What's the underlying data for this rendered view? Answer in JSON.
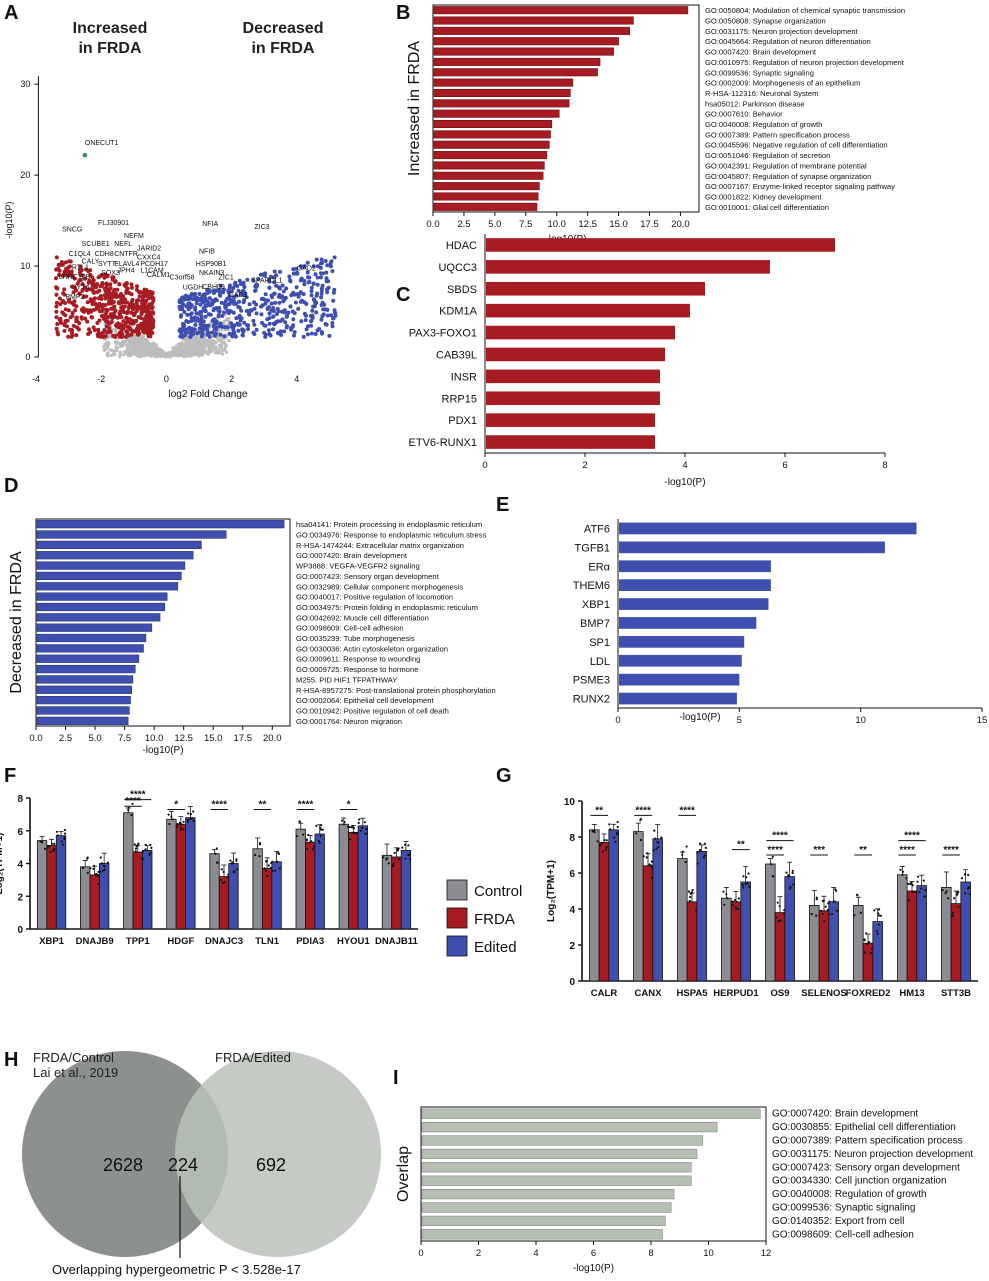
{
  "colors": {
    "red": "#a61c22",
    "blue": "#3f4fb0",
    "gray": "#8b8d92",
    "light_gray": "#bdbdbd",
    "venn_left": "#8d918e",
    "venn_right": "#b8c2b8",
    "overlap_bar": "#b5c0b3"
  },
  "chart_data": [
    {
      "id": "A",
      "panel": "A",
      "type": "scatter",
      "title_left": "Increased\nin FRDA",
      "title_right": "Decreased\nin FRDA",
      "xlabel": "log2 Fold Change",
      "ylabel": "-log10(P)",
      "xlim": [
        -4,
        6
      ],
      "ylim": [
        0,
        32
      ],
      "xticks": [
        -4,
        -2,
        0,
        2,
        4
      ],
      "yticks": [
        0,
        10,
        20,
        30
      ],
      "labels": [
        {
          "text": "ONECUT1",
          "x": -2.5,
          "y": 23.3
        },
        {
          "text": "SNCG",
          "x": -3.2,
          "y": 13.8
        },
        {
          "text": "FLJ30901",
          "x": -2.1,
          "y": 14.5
        },
        {
          "text": "NEFM",
          "x": -1.3,
          "y": 13.1
        },
        {
          "text": "SCUBE1",
          "x": -2.6,
          "y": 12.2
        },
        {
          "text": "NEFL",
          "x": -1.6,
          "y": 12.2
        },
        {
          "text": "JARID2",
          "x": -0.9,
          "y": 11.7
        },
        {
          "text": "C1QL4",
          "x": -3.0,
          "y": 11.1
        },
        {
          "text": "CDH8",
          "x": -2.2,
          "y": 11.1
        },
        {
          "text": "CNTFR",
          "x": -1.6,
          "y": 11.1
        },
        {
          "text": "CXXC4",
          "x": -0.9,
          "y": 10.7
        },
        {
          "text": "CALY",
          "x": -2.6,
          "y": 10.3
        },
        {
          "text": "SYT7",
          "x": -2.1,
          "y": 10.0
        },
        {
          "text": "ELAVL4",
          "x": -1.6,
          "y": 10.0
        },
        {
          "text": "PCDH17",
          "x": -0.8,
          "y": 10.0
        },
        {
          "text": "RTL1",
          "x": -2.9,
          "y": 9.6
        },
        {
          "text": "JPH4",
          "x": -1.5,
          "y": 9.3
        },
        {
          "text": "L1CAM",
          "x": -0.8,
          "y": 9.3
        },
        {
          "text": "SOX3",
          "x": -2.0,
          "y": 9.0
        },
        {
          "text": "CALM1",
          "x": -0.6,
          "y": 8.8
        },
        {
          "text": "LRRC10B",
          "x": -3.3,
          "y": 8.6
        },
        {
          "text": "NFIA",
          "x": 1.1,
          "y": 14.4
        },
        {
          "text": "ZIC3",
          "x": 2.7,
          "y": 14.1
        },
        {
          "text": "NFIB",
          "x": 1.0,
          "y": 11.4
        },
        {
          "text": "GAD2",
          "x": 4.0,
          "y": 9.5
        },
        {
          "text": "HSP90B1",
          "x": 0.9,
          "y": 10.0
        },
        {
          "text": "SPARCL1",
          "x": 2.6,
          "y": 8.2
        },
        {
          "text": "NKAIN3",
          "x": 1.0,
          "y": 9.0
        },
        {
          "text": "ZIC1",
          "x": 1.6,
          "y": 8.5
        },
        {
          "text": "C3orf58",
          "x": 0.1,
          "y": 8.5
        },
        {
          "text": "UGDH",
          "x": 0.5,
          "y": 7.4
        },
        {
          "text": "CBH09",
          "x": 1.1,
          "y": 7.5
        },
        {
          "text": "GAD1",
          "x": 1.9,
          "y": 6.6
        },
        {
          "text": "SYT4",
          "x": -2.9,
          "y": 7.4
        },
        {
          "text": "PMP2",
          "x": -3.1,
          "y": 6.4
        }
      ]
    },
    {
      "id": "B",
      "panel": "B",
      "type": "bar",
      "orientation": "horizontal",
      "ylabel": "Increased in FRDA",
      "xlabel": "-log10(P)",
      "xlim": [
        0,
        21.5
      ],
      "xticks": [
        0,
        2.5,
        5,
        7.5,
        10,
        12.5,
        15,
        17.5,
        20
      ],
      "xtick_labels": [
        "0.0",
        "2.5",
        "5.0",
        "7.5",
        "10.0",
        "12.5",
        "15.0",
        "17.5",
        "20.0"
      ],
      "categories": [
        "GO:0050804: Modulation of chemical synaptic transmission",
        "GO:0050808: Synapse organization",
        "GO:0031175: Neuron projection development",
        "GO:0045664: Regulation of neuron differentiation",
        "GO:0007420: Brain development",
        "GO:0010975: Regulation of neuron projection development",
        "GO:0099536: Synaptic signaling",
        "GO:0002009: Morphogenesis of an epithelium",
        "R-HSA-112316: Neuronal System",
        "hsa05012: Parkinson disease",
        "GO:0007610: Behavior",
        "GO:0040008: Regulation of growth",
        "GO:0007389: Pattern specification process",
        "GO:0045596: Negative regulation of cell differentiation",
        "GO:0051046: Regulation of secretion",
        "GO:0042391: Regulation of membrane potential",
        "GO:0045807: Regulation of synapse organization",
        "GO:0007167: Enzyme-linked receptor signaling pathway",
        "GO:0001822: Kidney development",
        "GO:0010001: Glial cell differentiation"
      ],
      "values": [
        20.6,
        16.2,
        15.9,
        15.0,
        14.6,
        13.5,
        13.3,
        11.3,
        11.1,
        11.0,
        10.2,
        9.6,
        9.5,
        9.4,
        9.2,
        9.0,
        8.9,
        8.6,
        8.5,
        8.4
      ]
    },
    {
      "id": "C",
      "panel": "C",
      "type": "bar",
      "orientation": "horizontal",
      "xlabel": "-log10(P)",
      "xlim": [
        0,
        8
      ],
      "xticks": [
        0,
        2,
        4,
        6,
        8
      ],
      "categories": [
        "HDAC",
        "UQCC3",
        "SBDS",
        "KDM1A",
        "PAX3-FOXO1",
        "CAB39L",
        "INSR",
        "RRP15",
        "PDX1",
        "ETV6-RUNX1"
      ],
      "values": [
        7.0,
        5.7,
        4.4,
        4.1,
        3.8,
        3.6,
        3.5,
        3.5,
        3.4,
        3.4
      ]
    },
    {
      "id": "D",
      "panel": "D",
      "type": "bar",
      "orientation": "horizontal",
      "ylabel": "Decreased in FRDA",
      "xlabel": "-log10(P)",
      "xlim": [
        0,
        21.5
      ],
      "xticks": [
        0,
        2.5,
        5,
        7.5,
        10,
        12.5,
        15,
        17.5,
        20
      ],
      "xtick_labels": [
        "0.0",
        "2.5",
        "5.0",
        "7.5",
        "10.0",
        "12.5",
        "15.0",
        "17.5",
        "20.0"
      ],
      "categories": [
        "hsa04141: Protein processing in endoplasmic reticulum",
        "GO:0034976: Response to endoplasmic reticulum stress",
        "R-HSA-1474244: Extracellular matrix organization",
        "GO:0007420: Brain development",
        "WP3888: VEGFA-VEGFR2 signaling",
        "GO:0007423: Sensory organ development",
        "GO:0032989: Cellular component morphogenesis",
        "GO:0040017: Positive regulation of locomotion",
        "GO:0034975: Protein folding in endoplasmic reticulum",
        "GO:0042692: Muscle cell differentiation",
        "GO:0098609: Cell-cell adhesion",
        "GO:0035239: Tube morphogenesis",
        "GO:0030036: Actin cytoskeleton organization",
        "GO:0009611: Response to wounding",
        "GO:0009725: Response to hormone",
        "M255: PID HIF1 TFPATHWAY",
        "R-HSA-8957275: Post-translational protein phosphorylation",
        "GO:0002064: Epithelial cell development",
        "GO:0010942: Positive regulation of cell death",
        "GO:0001764: Neuron migration"
      ],
      "values": [
        21.0,
        16.1,
        14.0,
        13.3,
        12.6,
        12.3,
        12.0,
        11.1,
        10.9,
        10.5,
        9.8,
        9.3,
        9.1,
        8.7,
        8.4,
        8.2,
        8.1,
        8.0,
        7.9,
        7.8
      ]
    },
    {
      "id": "E",
      "panel": "E",
      "type": "bar",
      "orientation": "horizontal",
      "xlabel": "-log10(P)",
      "xlim": [
        0,
        15
      ],
      "xticks": [
        0,
        5,
        10,
        15
      ],
      "categories": [
        "ATF6",
        "TGFB1",
        "ERα",
        "THEM6",
        "XBP1",
        "BMP7",
        "SP1",
        "LDL",
        "PSME3",
        "RUNX2"
      ],
      "values": [
        12.3,
        11.0,
        6.3,
        6.3,
        6.2,
        5.7,
        5.2,
        5.1,
        5.0,
        4.9
      ]
    },
    {
      "id": "F",
      "panel": "F",
      "type": "bar",
      "grouped": true,
      "ylabel": "Log₂(TPM+1)",
      "ylim": [
        0,
        8
      ],
      "yticks": [
        0,
        2,
        4,
        6,
        8
      ],
      "categories": [
        "XBP1",
        "DNAJB9",
        "TPP1",
        "HDGF",
        "DNAJC3",
        "TLN1",
        "PDIA3",
        "HYOU1",
        "DNAJB11"
      ],
      "series": [
        {
          "name": "Control",
          "values": [
            5.4,
            3.8,
            7.1,
            6.7,
            4.6,
            4.9,
            6.1,
            6.4,
            4.5
          ]
        },
        {
          "name": "FRDA",
          "values": [
            5.1,
            3.3,
            4.7,
            6.4,
            3.2,
            3.7,
            5.3,
            5.9,
            4.4
          ]
        },
        {
          "name": "Edited",
          "values": [
            5.7,
            4.0,
            4.8,
            6.8,
            4.0,
            4.1,
            5.8,
            6.3,
            4.8
          ]
        }
      ],
      "significance": [
        {
          "category": "TPP1",
          "label": "****",
          "from": "Control",
          "to": "Edited",
          "level": 7.9
        },
        {
          "category": "TPP1",
          "label": "****",
          "from": "Control",
          "to": "FRDA",
          "level": 7.5
        },
        {
          "category": "HDGF",
          "label": "*",
          "from": "Control",
          "to": "FRDA",
          "level": 7.3
        },
        {
          "category": "DNAJC3",
          "label": "****",
          "from": "Control",
          "to": "FRDA",
          "level": 7.3
        },
        {
          "category": "TLN1",
          "label": "**",
          "from": "Control",
          "to": "FRDA",
          "level": 7.3
        },
        {
          "category": "PDIA3",
          "label": "****",
          "from": "Control",
          "to": "FRDA",
          "level": 7.3
        },
        {
          "category": "HYOU1",
          "label": "*",
          "from": "Control",
          "to": "FRDA",
          "level": 7.3
        }
      ]
    },
    {
      "id": "G",
      "panel": "G",
      "type": "bar",
      "grouped": true,
      "ylabel": "Log₂(TPM+1)",
      "ylim": [
        0,
        10
      ],
      "yticks": [
        0,
        2,
        4,
        6,
        8,
        10
      ],
      "categories": [
        "CALR",
        "CANX",
        "HSPA5",
        "HERPUD1",
        "OS9",
        "SELENOS",
        "FOXRED2",
        "HM13",
        "STT3B"
      ],
      "series": [
        {
          "name": "Control",
          "values": [
            8.4,
            8.3,
            6.8,
            4.6,
            6.5,
            4.2,
            4.2,
            5.9,
            5.2
          ]
        },
        {
          "name": "FRDA",
          "values": [
            7.7,
            6.4,
            4.4,
            4.4,
            3.8,
            3.9,
            2.1,
            5.0,
            4.3
          ]
        },
        {
          "name": "Edited",
          "values": [
            8.4,
            7.9,
            7.2,
            5.5,
            5.8,
            4.4,
            3.3,
            5.3,
            5.5
          ]
        }
      ],
      "significance": [
        {
          "category": "CALR",
          "label": "**",
          "from": "Control",
          "to": "FRDA",
          "level": 9.2
        },
        {
          "category": "CANX",
          "label": "****",
          "from": "Control",
          "to": "FRDA",
          "level": 9.2
        },
        {
          "category": "HSPA5",
          "label": "****",
          "from": "Control",
          "to": "FRDA",
          "level": 9.2
        },
        {
          "category": "HERPUD1",
          "label": "**",
          "from": "FRDA",
          "to": "Edited",
          "level": 7.3
        },
        {
          "category": "OS9",
          "label": "****",
          "from": "Control",
          "to": "Edited",
          "level": 7.8
        },
        {
          "category": "OS9",
          "label": "****",
          "from": "Control",
          "to": "FRDA",
          "level": 7.0
        },
        {
          "category": "SELENOS",
          "label": "***",
          "from": "Control",
          "to": "FRDA",
          "level": 7.0
        },
        {
          "category": "FOXRED2",
          "label": "**",
          "from": "Control",
          "to": "FRDA",
          "level": 7.0
        },
        {
          "category": "HM13",
          "label": "****",
          "from": "Control",
          "to": "Edited",
          "level": 7.8
        },
        {
          "category": "HM13",
          "label": "****",
          "from": "Control",
          "to": "FRDA",
          "level": 7.0
        },
        {
          "category": "STT3B",
          "label": "****",
          "from": "Control",
          "to": "FRDA",
          "level": 7.0
        }
      ]
    },
    {
      "id": "I",
      "panel": "I",
      "type": "bar",
      "orientation": "horizontal",
      "ylabel": "Overlap",
      "xlabel": "-log10(P)",
      "xlim": [
        0,
        12
      ],
      "xticks": [
        0,
        2,
        4,
        6,
        8,
        10,
        12
      ],
      "categories": [
        "GO:0007420: Brain development",
        "GO:0030855: Epithelial cell differentiation",
        "GO:0007389: Pattern specification process",
        "GO:0031175: Neuron projection development",
        "GO:0007423: Sensory organ development",
        "GO:0034330: Cell junction organization",
        "GO:0040008: Regulation of growth",
        "GO:0099536: Synaptic signaling",
        "GO:0140352: Export from cell",
        "GO:0098609: Cell-cell adhesion"
      ],
      "values": [
        11.8,
        10.3,
        9.8,
        9.6,
        9.4,
        9.4,
        8.8,
        8.7,
        8.5,
        8.4
      ]
    }
  ],
  "legend": {
    "items": [
      "Control",
      "FRDA",
      "Edited"
    ]
  },
  "venn": {
    "panel": "H",
    "left_label": "FRDA/Control\nLai et al., 2019",
    "right_label": "FRDA/Edited",
    "left_only": "2628",
    "overlap": "224",
    "right_only": "692",
    "caption": "Overlapping hypergeometric P < 3.528e-17"
  }
}
